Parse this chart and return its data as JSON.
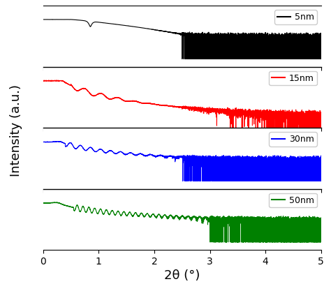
{
  "title": "",
  "xlabel": "2θ (°)",
  "ylabel": "Intensity (a.u.)",
  "xlim": [
    0,
    5
  ],
  "curves": [
    {
      "label": "5nm",
      "color": "black"
    },
    {
      "label": "15nm",
      "color": "red"
    },
    {
      "label": "30nm",
      "color": "blue"
    },
    {
      "label": "50nm",
      "color": "green"
    }
  ],
  "background_color": "white",
  "linewidth": 0.8,
  "xlabel_fontsize": 13,
  "ylabel_fontsize": 13,
  "legend_fontsize": 9,
  "tick_fontsize": 10
}
